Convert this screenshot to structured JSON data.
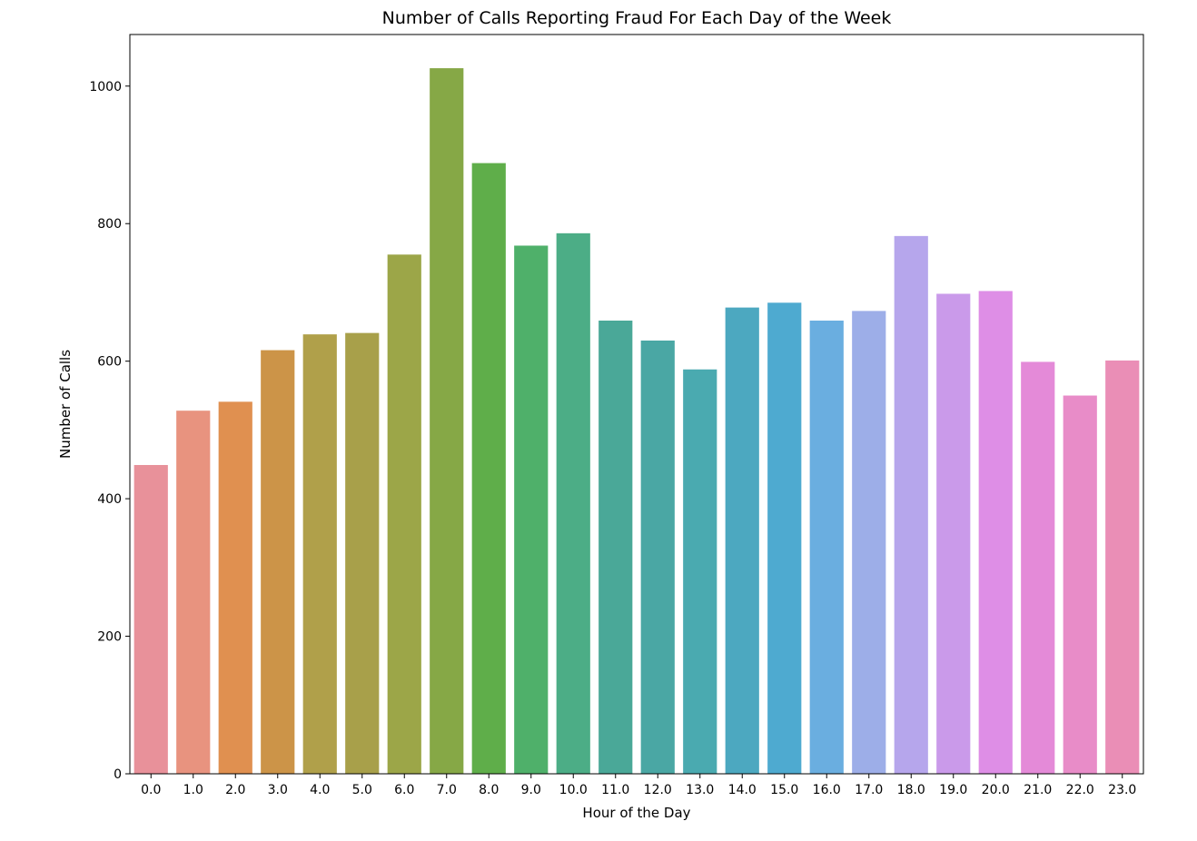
{
  "chart_data": {
    "type": "bar",
    "title": "Number of Calls Reporting Fraud For Each Day of the Week",
    "xlabel": "Hour of the Day",
    "ylabel": "Number of Calls",
    "ylim": [
      0,
      1075
    ],
    "yticks": [
      0,
      200,
      400,
      600,
      800,
      1000
    ],
    "ytick_labels": [
      "0",
      "200",
      "400",
      "600",
      "800",
      "1000"
    ],
    "grid": false,
    "categories": [
      "0.0",
      "1.0",
      "2.0",
      "3.0",
      "4.0",
      "5.0",
      "6.0",
      "7.0",
      "8.0",
      "9.0",
      "10.0",
      "11.0",
      "12.0",
      "13.0",
      "14.0",
      "15.0",
      "16.0",
      "17.0",
      "18.0",
      "19.0",
      "20.0",
      "21.0",
      "22.0",
      "23.0"
    ],
    "values": [
      449,
      528,
      541,
      616,
      639,
      641,
      755,
      1026,
      888,
      768,
      786,
      659,
      630,
      588,
      678,
      685,
      659,
      673,
      782,
      698,
      702,
      599,
      550,
      601
    ],
    "colors": [
      "#e8919a",
      "#e8937f",
      "#e09050",
      "#cc9448",
      "#b0a04a",
      "#a8a04a",
      "#9ca648",
      "#86a846",
      "#5fae4a",
      "#4fb06a",
      "#4cad86",
      "#4aa898",
      "#4aa7a4",
      "#4aaab0",
      "#4ca8c0",
      "#4eaad0",
      "#6aaee0",
      "#9daee8",
      "#b6a6ec",
      "#ca9aea",
      "#de8ee6",
      "#e48ad8",
      "#e88cc8",
      "#ea8eb6"
    ]
  }
}
